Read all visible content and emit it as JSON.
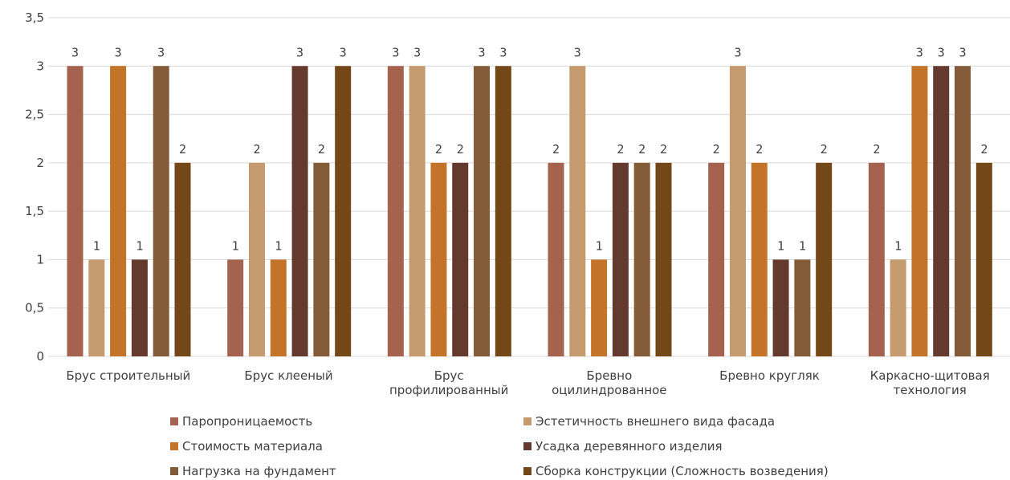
{
  "chart_data": {
    "type": "bar",
    "categories": [
      [
        "Брус строительный"
      ],
      [
        "Брус клееный"
      ],
      [
        "Брус",
        "профилированный"
      ],
      [
        "Бревно",
        "оцилиндрованное"
      ],
      [
        "Бревно кругляк"
      ],
      [
        "Каркасно-щитовая",
        "технология"
      ]
    ],
    "series": [
      {
        "name": "Паропроницаемость",
        "color": "#A5634F",
        "values": [
          3,
          1,
          3,
          2,
          2,
          2
        ]
      },
      {
        "name": "Эстетичность внешнего вида фасада",
        "color": "#C59A6E",
        "values": [
          1,
          2,
          3,
          3,
          3,
          1
        ]
      },
      {
        "name": "Стоимость материала",
        "color": "#C47428",
        "values": [
          3,
          1,
          2,
          1,
          2,
          3
        ]
      },
      {
        "name": "Усадка деревянного изделия",
        "color": "#643A2F",
        "values": [
          1,
          3,
          2,
          2,
          1,
          3
        ]
      },
      {
        "name": "Нагрузка на фундамент",
        "color": "#835B39",
        "values": [
          3,
          2,
          3,
          2,
          1,
          3
        ]
      },
      {
        "name": "Сборка конструкции (Сложность возведения)",
        "color": "#744719",
        "values": [
          2,
          3,
          3,
          2,
          2,
          2
        ]
      }
    ],
    "y_ticks": [
      "0",
      "0,5",
      "1",
      "1,5",
      "2",
      "2,5",
      "3",
      "3,5"
    ],
    "ylim": [
      0,
      3.5
    ],
    "grid": true,
    "legend_position": "bottom",
    "title": "",
    "xlabel": "",
    "ylabel": ""
  }
}
